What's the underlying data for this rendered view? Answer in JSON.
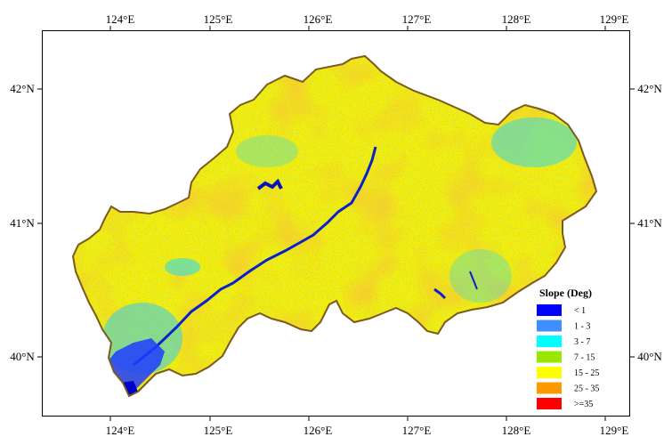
{
  "map": {
    "axes": {
      "top_ticks": [
        "124°E",
        "125°E",
        "126°E",
        "127°E",
        "128°E",
        "129°E"
      ],
      "bottom_ticks": [
        "124°E",
        "125°E",
        "126°E",
        "127°E",
        "128°E",
        "129°E"
      ],
      "left_ticks": [
        "42°N",
        "41°N",
        "40°N"
      ],
      "right_ticks": [
        "42°N",
        "41°N",
        "40°N"
      ]
    },
    "legend": {
      "title": "Slope (Deg)",
      "items": [
        {
          "label": "< 1",
          "color": "#0000FF"
        },
        {
          "label": "1 - 3",
          "color": "#3F8FFF"
        },
        {
          "label": "3 - 7",
          "color": "#00FFFF"
        },
        {
          "label": "7 - 15",
          "color": "#99E600"
        },
        {
          "label": "15 - 25",
          "color": "#FFFF00"
        },
        {
          "label": "25 - 35",
          "color": "#FF9900"
        },
        {
          "label": ">=35",
          "color": "#FF0000"
        }
      ]
    },
    "boundary_color": "#7A5A1E"
  }
}
